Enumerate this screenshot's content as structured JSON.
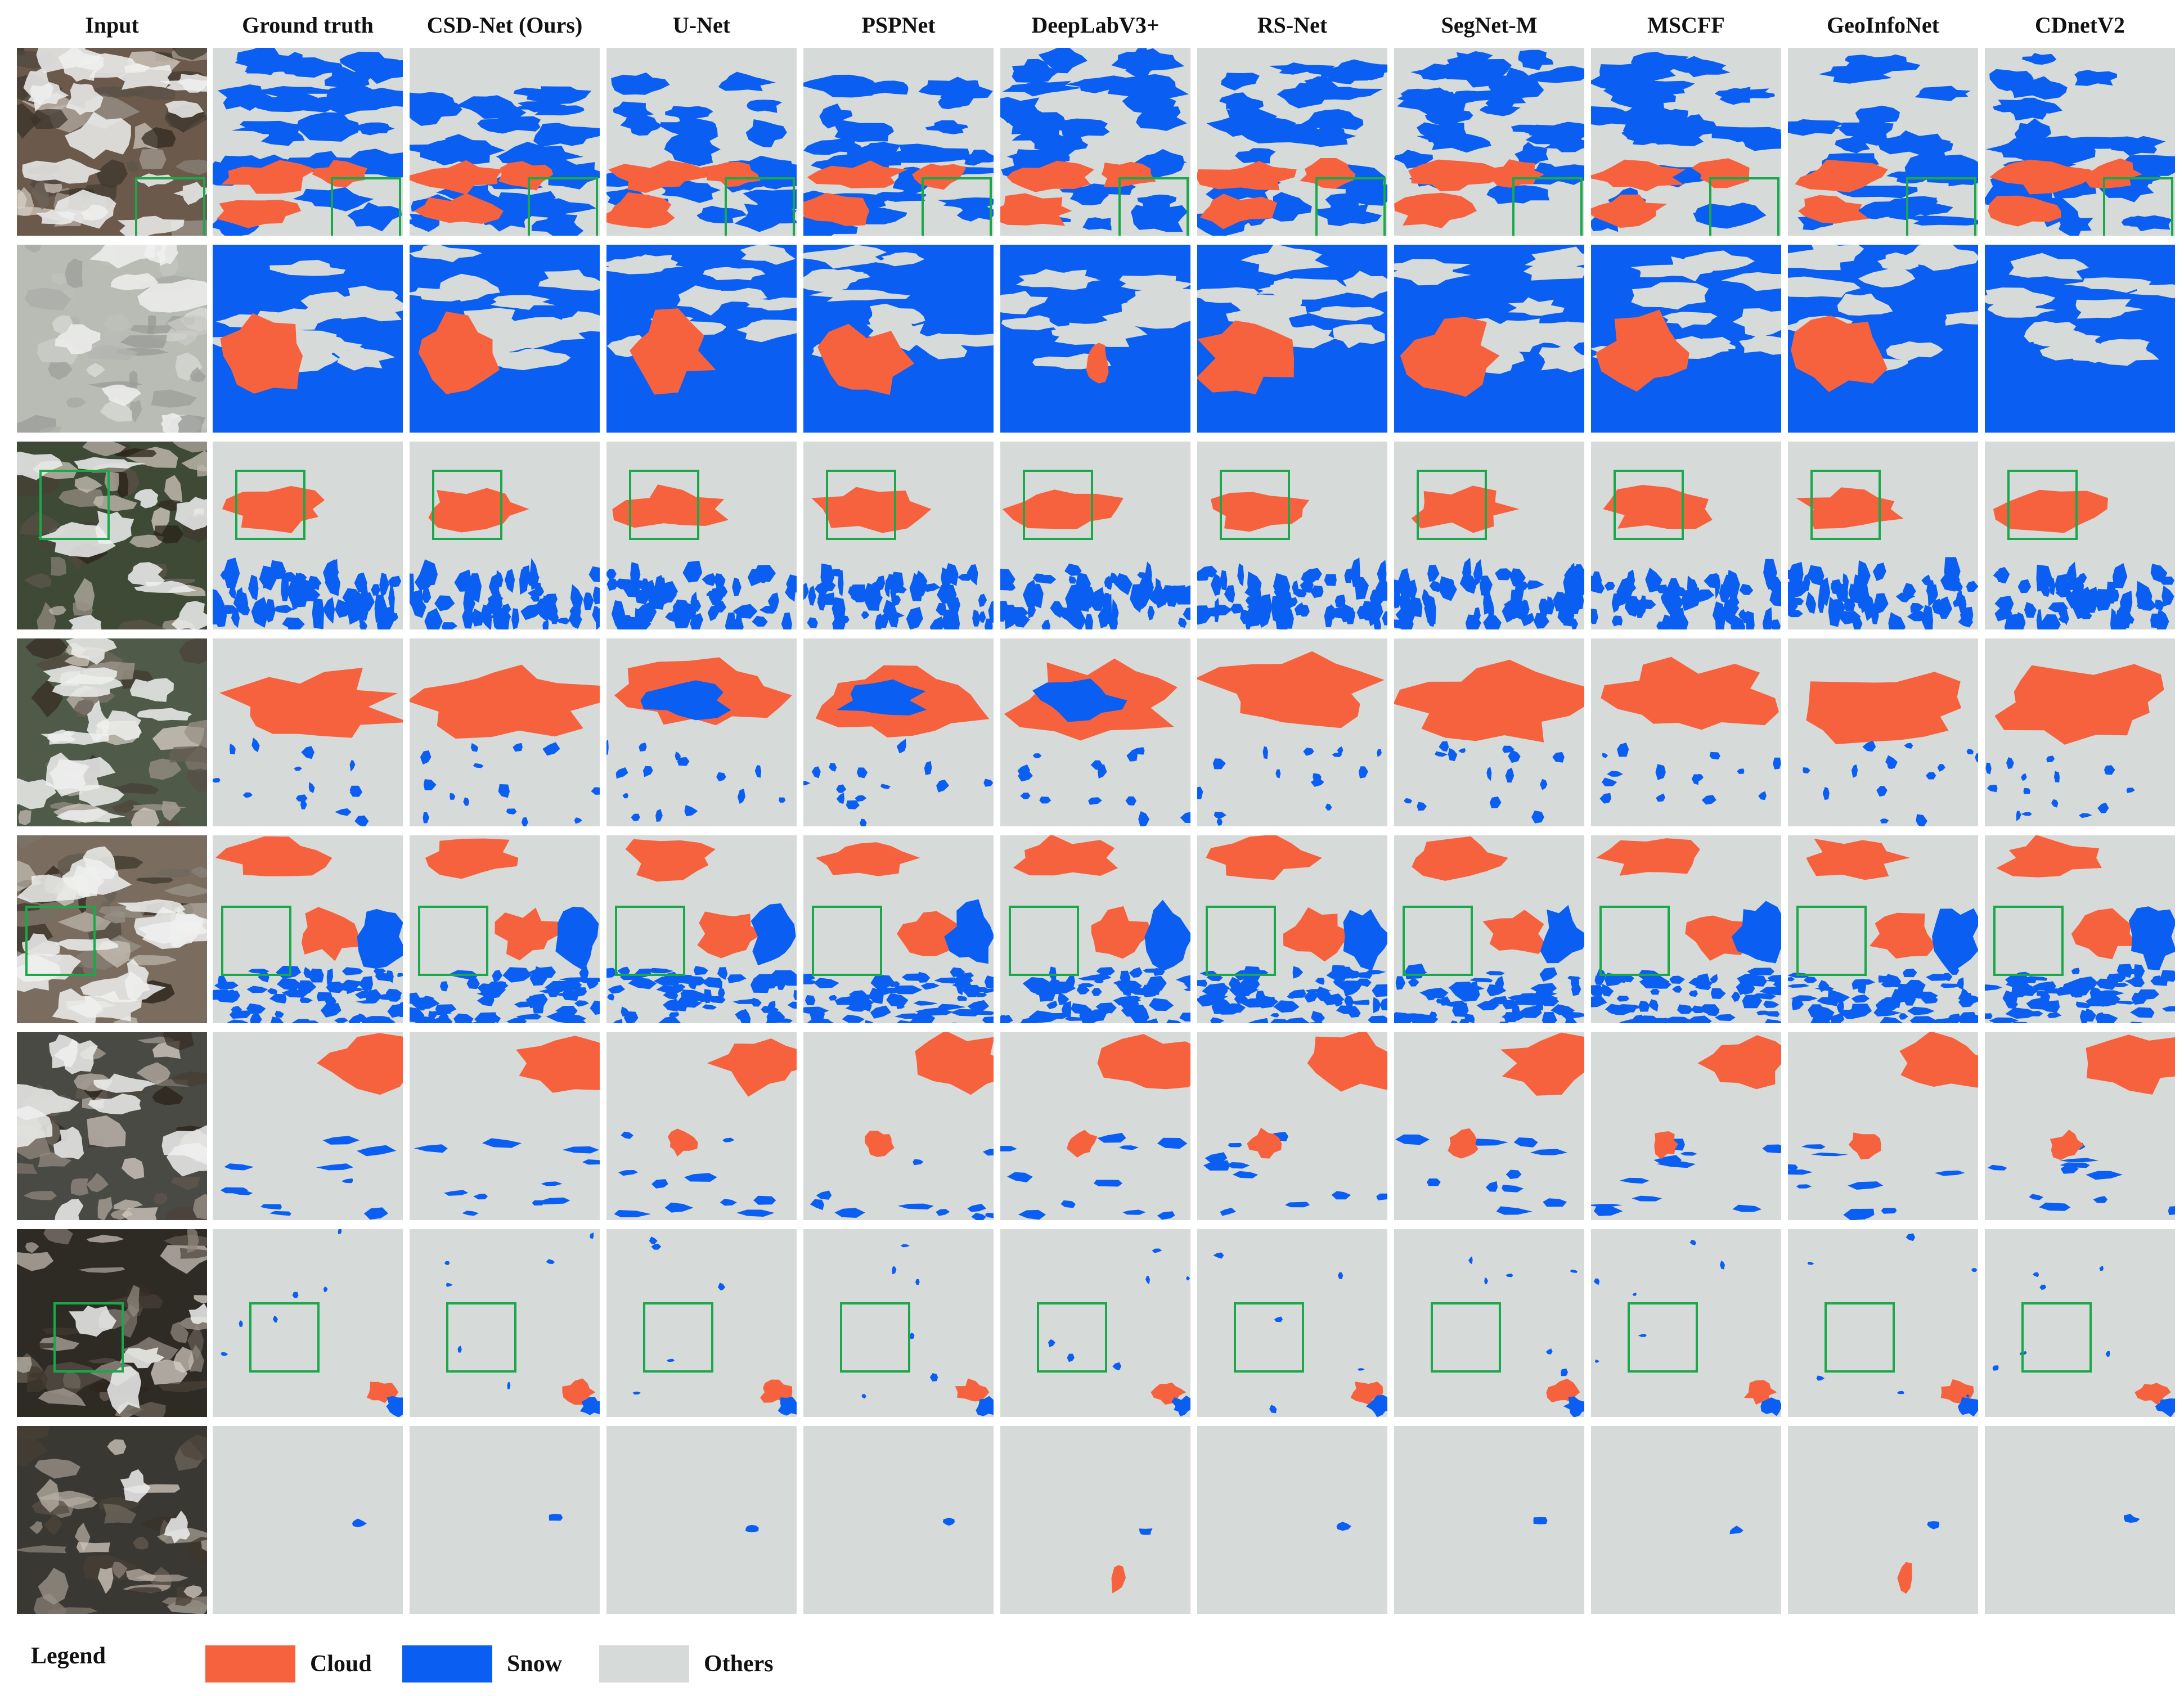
{
  "columns": [
    "Input",
    "Ground truth",
    "CSD-Net (Ours)",
    "U-Net",
    "PSPNet",
    "DeepLabV3+",
    "RS-Net",
    "SegNet-M",
    "MSCFF",
    "GeoInfoNet",
    "CDnetV2"
  ],
  "legend": {
    "title": "Legend",
    "items": [
      {
        "label": "Cloud",
        "color": "#f7623e"
      },
      {
        "label": "Snow",
        "color": "#0a5ff2"
      },
      {
        "label": "Others",
        "color": "#d6dad8"
      }
    ]
  },
  "colors": {
    "cloud": "#f7623e",
    "snow": "#0a5ff2",
    "others": "#d6dad8",
    "highlight_box": "#1aa84a"
  },
  "rows": [
    {
      "highlight_box": true
    },
    {
      "highlight_box": false
    },
    {
      "highlight_box": true
    },
    {
      "highlight_box": false
    },
    {
      "highlight_box": true
    },
    {
      "highlight_box": false
    },
    {
      "highlight_box": true
    },
    {
      "highlight_box": false
    }
  ]
}
